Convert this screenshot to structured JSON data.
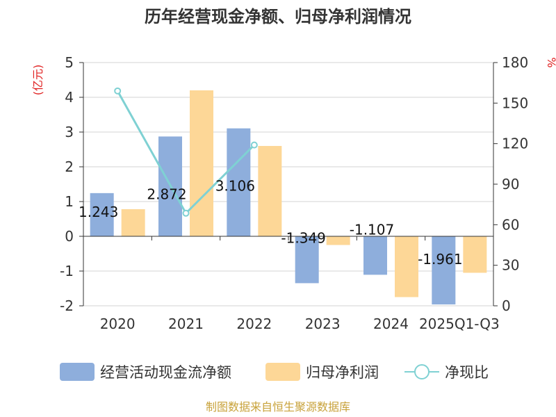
{
  "chart_data": {
    "type": "bar",
    "title": "历年经营现金净额、归母净利润情况",
    "categories": [
      "2020",
      "2021",
      "2022",
      "2023",
      "2024",
      "2025Q1-Q3"
    ],
    "series": [
      {
        "name": "经营活动现金流净额",
        "kind": "bar",
        "axis": "left",
        "color": "#8eaedc",
        "values": [
          1.243,
          2.872,
          3.106,
          -1.349,
          -1.107,
          -1.961
        ],
        "labels": [
          "1.243",
          "2.872",
          "3.106",
          "-1.349",
          "-1.107",
          "-1.961"
        ]
      },
      {
        "name": "归母净利润",
        "kind": "bar",
        "axis": "left",
        "color": "#fdd797",
        "values": [
          0.78,
          4.2,
          2.6,
          -0.25,
          -1.75,
          -1.05
        ]
      },
      {
        "name": "净现比",
        "kind": "line",
        "axis": "right",
        "color": "#7fd1d3",
        "values": [
          159,
          68.5,
          119,
          null,
          null,
          null
        ]
      }
    ],
    "left_axis": {
      "unit": "(亿元)",
      "ylim": [
        -2,
        5
      ],
      "ticks": [
        -2,
        -1,
        0,
        1,
        2,
        3,
        4,
        5
      ]
    },
    "right_axis": {
      "unit": "%",
      "ylim": [
        0,
        180
      ],
      "ticks": [
        0,
        30,
        60,
        90,
        120,
        150,
        180
      ]
    },
    "grid": true,
    "legend_position": "bottom"
  },
  "source": "制图数据来自恒生聚源数据库"
}
